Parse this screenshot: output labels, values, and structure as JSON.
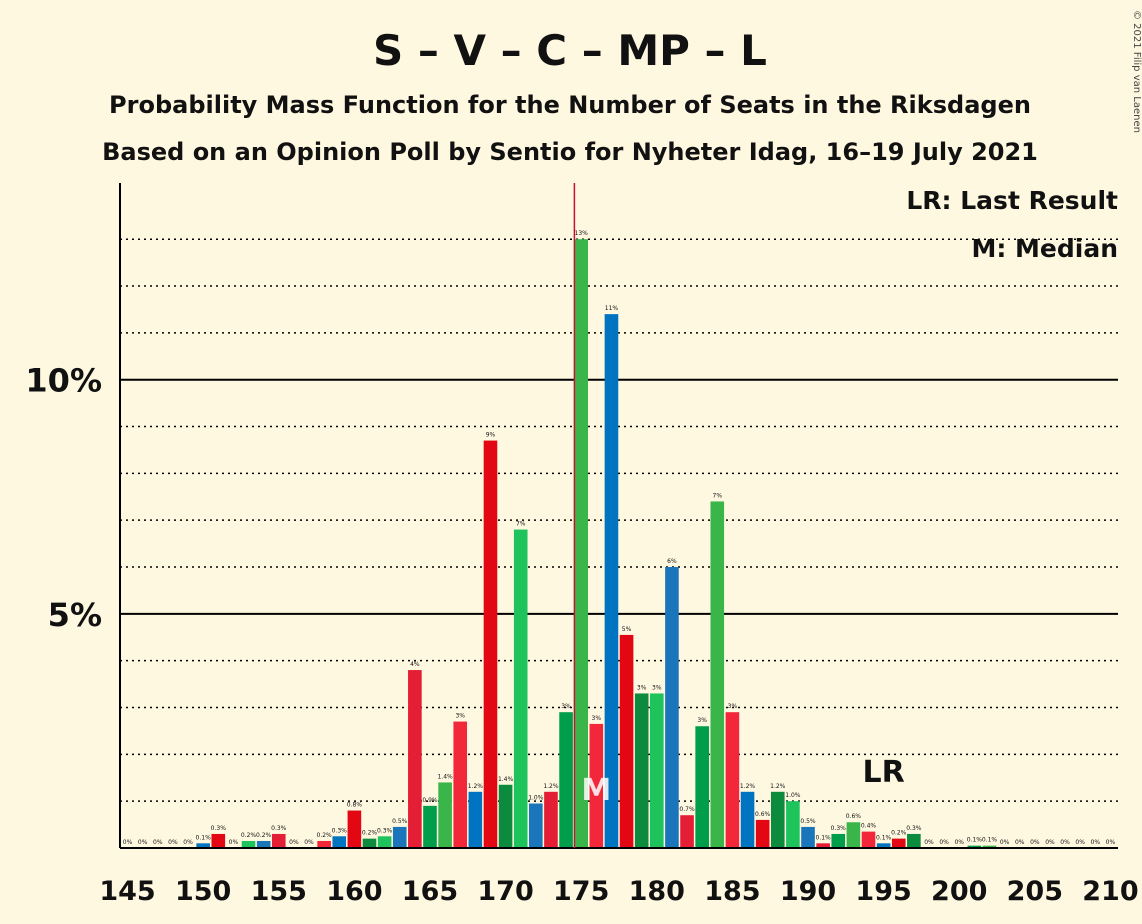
{
  "title": "S – V – C – MP – L",
  "subtitle": "Probability Mass Function for the Number of Seats in the Riksdagen",
  "subtitle2": "Based on an Opinion Poll by Sentio for Nyheter Idag, 16–19 July 2021",
  "copyright": "© 2021 Filip van Laenen",
  "legend_lr": "LR: Last Result",
  "legend_m": "M: Median",
  "lr_label": "LR",
  "m_label": "M",
  "chart_data": {
    "type": "bar",
    "x": [
      145,
      146,
      147,
      148,
      149,
      150,
      151,
      152,
      153,
      154,
      155,
      156,
      157,
      158,
      159,
      160,
      161,
      162,
      163,
      164,
      165,
      166,
      167,
      168,
      169,
      170,
      171,
      172,
      173,
      174,
      175,
      176,
      177,
      178,
      179,
      180,
      181,
      182,
      183,
      184,
      185,
      186,
      187,
      188,
      189,
      190,
      191,
      192,
      193,
      194,
      195,
      196,
      197,
      198,
      199,
      200,
      201,
      202,
      203,
      204,
      205,
      206,
      207,
      208,
      209,
      210
    ],
    "values": [
      0,
      0,
      0,
      0,
      0,
      0.1,
      0.3,
      0,
      0.15,
      0.15,
      0.3,
      0,
      0,
      0.15,
      0.25,
      0.8,
      0.2,
      0.25,
      0.45,
      3.8,
      0.9,
      1.4,
      2.7,
      1.2,
      8.7,
      1.35,
      6.8,
      0.95,
      1.2,
      2.9,
      13.0,
      2.65,
      11.4,
      4.55,
      3.3,
      3.3,
      6.0,
      0.7,
      2.6,
      7.4,
      2.9,
      1.2,
      0.6,
      1.2,
      1.0,
      0.45,
      0.1,
      0.3,
      0.55,
      0.35,
      0.1,
      0.2,
      0.3,
      0,
      0,
      0,
      0.05,
      0.05,
      0,
      0,
      0,
      0,
      0,
      0,
      0,
      0
    ],
    "labels": [
      "0%",
      "0%",
      "0%",
      "0%",
      "0%",
      "0.1%",
      "0.3%",
      "0%",
      "0.2%",
      "0.2%",
      "0.3%",
      "0%",
      "0%",
      "0.2%",
      "0.3%",
      "0.8%",
      "0.2%",
      "0.3%",
      "0.5%",
      "4%",
      "0.9%",
      "1.4%",
      "3%",
      "1.2%",
      "9%",
      "1.4%",
      "7%",
      "1.0%",
      "1.2%",
      "3%",
      "13%",
      "3%",
      "11%",
      "5%",
      "3%",
      "3%",
      "6%",
      "0.7%",
      "3%",
      "7%",
      "3%",
      "1.2%",
      "0.6%",
      "1.2%",
      "1.0%",
      "0.5%",
      "0.1%",
      "0.3%",
      "0.6%",
      "0.4%",
      "0.1%",
      "0.2%",
      "0.3%",
      "0%",
      "0%",
      "0%",
      "0.1%",
      "0.1%",
      "0%",
      "0%",
      "0%",
      "0%",
      "0%",
      "0%",
      "0%",
      "0%"
    ],
    "colors": [
      "#1b75bb",
      "#e31e35",
      "#009e4a",
      "#39b54a",
      "#f2283a",
      "#0073c1",
      "#e30613",
      "#0c8a3e",
      "#1ec35c"
    ],
    "xticks": [
      145,
      150,
      155,
      160,
      165,
      170,
      175,
      180,
      185,
      190,
      195,
      200,
      205,
      210
    ],
    "yticks": [
      0,
      5,
      10
    ],
    "ytick_labels": [
      "",
      "5%",
      "10%"
    ],
    "xlim": [
      144.5,
      210.5
    ],
    "ylim": [
      0,
      14.2
    ],
    "median": 176,
    "last_result": 195,
    "majority_line": 175
  }
}
